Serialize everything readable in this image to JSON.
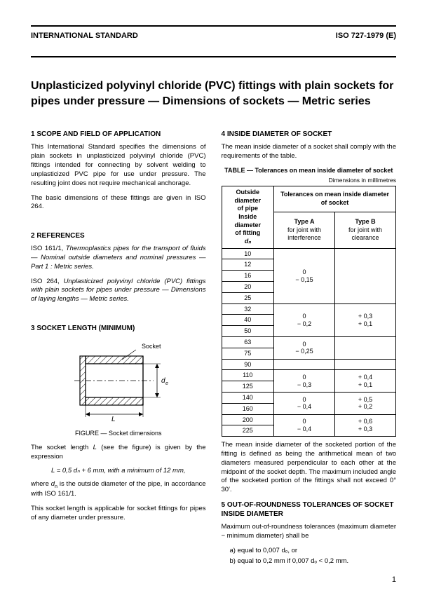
{
  "header": {
    "left": "INTERNATIONAL STANDARD",
    "right": "ISO 727-1979 (E)"
  },
  "title": "Unplasticized polyvinyl chloride (PVC) fittings with plain sockets for pipes under pressure — Dimensions of sockets — Metric series",
  "s1": {
    "head": "1  SCOPE AND FIELD OF APPLICATION",
    "p1": "This International Standard specifies the dimensions of plain sockets in unplasticized polyvinyl chloride (PVC) fittings intended for connecting by solvent welding to unplasticized PVC pipe for use under pressure. The resulting joint does not require mechanical anchorage.",
    "p2": "The basic dimensions of these fittings are given in ISO 264."
  },
  "s2": {
    "head": "2  REFERENCES",
    "r1_a": "ISO 161/1, ",
    "r1_b": "Thermoplastics pipes for the transport of fluids — Nominal outside diameters and nominal pressures — Part 1 : Metric series.",
    "r2_a": "ISO 264, ",
    "r2_b": "Unplasticized polyvinyl chloride (PVC) fittings with plain sockets for pipes under pressure — Dimensions of laying lengths — Metric series."
  },
  "s3": {
    "head": "3  SOCKET LENGTH (MINIMUM)",
    "fig_label": "Socket",
    "fig_caption": "FIGURE — Socket dimensions",
    "p1_a": "The socket length ",
    "p1_b": " (see the figure) is given by the expression",
    "formula": "L = 0,5 dₙ + 6 mm, with a minimum of 12 mm,",
    "p2_a": "where ",
    "p2_b": " is the outside diameter of the pipe, in accordance with ISO 161/1.",
    "p3": "This socket length is applicable for socket fittings for pipes of any diameter under pressure."
  },
  "s4": {
    "head": "4  INSIDE DIAMETER OF SOCKET",
    "p1": "The mean inside diameter of a socket shall comply with the requirements of the table.",
    "table_title": "TABLE — Tolerances on mean inside diameter of socket",
    "table_units": "Dimensions in millimetres",
    "col1_l1": "Outside diameter",
    "col1_l2": "of pipe",
    "col1_l3": "Inside diameter",
    "col1_l4": "of fitting",
    "col1_sym": "dₙ",
    "col23_head": "Tolerances on mean inside diameter of socket",
    "col2_l1": "Type A",
    "col2_l2": "for joint with",
    "col2_l3": "interference",
    "col3_l1": "Type B",
    "col3_l2": "for joint with",
    "col3_l3": "clearance",
    "groups": [
      {
        "dn": [
          10,
          12,
          16,
          20,
          25
        ],
        "a_p": "0",
        "a_m": "− 0,15",
        "b_p": "",
        "b_m": ""
      },
      {
        "dn": [
          32,
          40,
          50
        ],
        "a_p": "0",
        "a_m": "− 0,2",
        "b_p": "+ 0,3",
        "b_m": "+ 0,1"
      },
      {
        "dn": [
          63,
          75
        ],
        "a_p": "0",
        "a_m": "− 0,25",
        "b_p": "",
        "b_m": ""
      },
      {
        "dn": [
          90
        ],
        "a_p": "",
        "a_m": "",
        "b_p": "",
        "b_m": ""
      },
      {
        "dn": [
          110,
          125
        ],
        "a_p": "0",
        "a_m": "− 0,3",
        "b_p": "+ 0,4",
        "b_m": "+ 0,1"
      },
      {
        "dn": [
          140,
          160
        ],
        "a_p": "0",
        "a_m": "− 0,4",
        "b_p": "+ 0,5",
        "b_m": "+ 0,2"
      },
      {
        "dn": [
          200,
          225
        ],
        "a_p": "0",
        "a_m": "− 0,4",
        "b_p": "+ 0,6",
        "b_m": "+ 0,3"
      }
    ],
    "p2": "The mean inside diameter of the socketed portion of the fitting is defined as being the arithmetical mean of two diameters measured perpendicular to each other at the midpoint of the socket depth. The maximum included angle of the socketed portion of the fittings shall not exceed 0° 30′."
  },
  "s5": {
    "head": "5  OUT-OF-ROUNDNESS TOLERANCES OF SOCKET INSIDE DIAMETER",
    "p1": "Maximum out-of-roundness tolerances (maximum diameter − minimum diameter) shall be",
    "a": "a)  equal to 0,007 dₒ, or",
    "b": "b)  equal to 0,2 mm if 0,007 dₒ < 0,2 mm."
  },
  "page": "1",
  "svg": {
    "stroke": "#000000",
    "hatch": "#000000"
  }
}
